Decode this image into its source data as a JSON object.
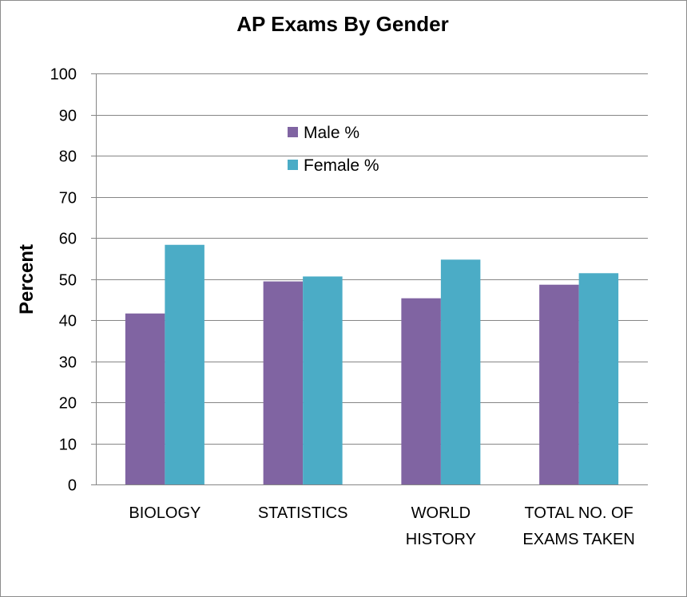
{
  "chart_data": {
    "type": "bar",
    "title": "AP Exams By Gender",
    "xlabel": "",
    "ylabel": "Percent",
    "ylim": [
      0,
      100
    ],
    "yticks": [
      0,
      10,
      20,
      30,
      40,
      50,
      60,
      70,
      80,
      90,
      100
    ],
    "grid": true,
    "legend_position": "top-center",
    "categories": [
      [
        "BIOLOGY"
      ],
      [
        "STATISTICS"
      ],
      [
        "WORLD",
        "HISTORY"
      ],
      [
        "TOTAL NO. OF",
        "EXAMS TAKEN"
      ]
    ],
    "series": [
      {
        "name": "Male %",
        "color": "#8064a2",
        "values": [
          41.6,
          49.4,
          45.3,
          48.6
        ]
      },
      {
        "name": "Female %",
        "color": "#4bacc6",
        "values": [
          58.3,
          50.6,
          54.7,
          51.4
        ]
      }
    ]
  }
}
